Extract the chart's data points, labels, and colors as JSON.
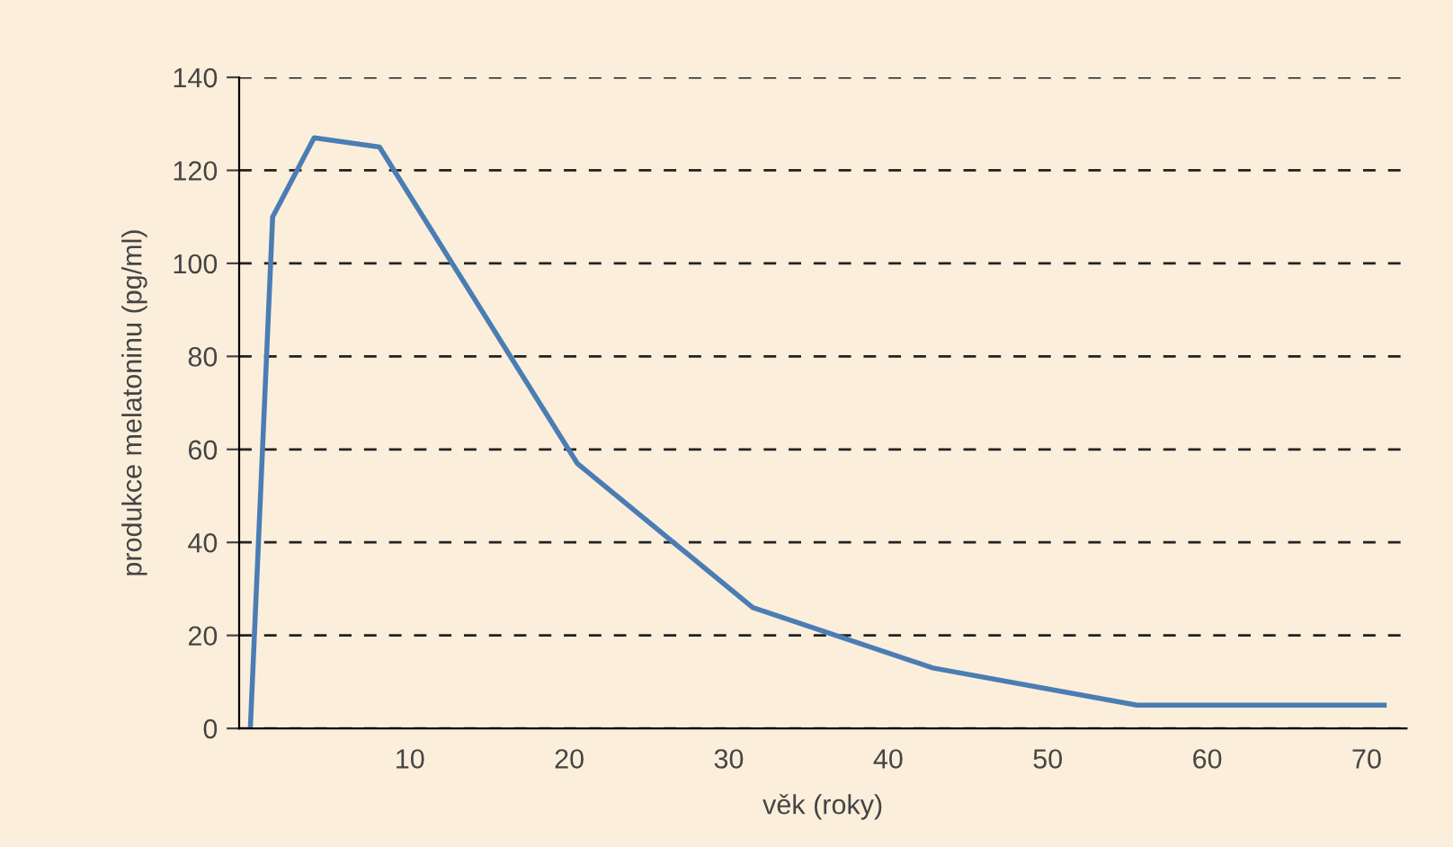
{
  "chart_data": {
    "type": "line",
    "xlabel": "věk (roky)",
    "ylabel": "produkce melatoninu (pg/ml)",
    "x": [
      0,
      1.4,
      4.0,
      8.1,
      20.5,
      31.5,
      42.8,
      55.6,
      71.1
    ],
    "series": [
      {
        "color": "#4a7db3",
        "values": [
          0,
          110,
          127,
          125,
          57,
          26,
          13,
          5,
          5
        ]
      }
    ],
    "xlim": [
      -0.7,
      72.5
    ],
    "ylim": [
      0,
      140
    ],
    "xticks": [
      10,
      20,
      30,
      40,
      50,
      60,
      70
    ],
    "yticks": [
      0,
      20,
      40,
      60,
      80,
      100,
      120,
      140
    ],
    "grid": "y",
    "marker": "none",
    "line_style": "solid"
  }
}
